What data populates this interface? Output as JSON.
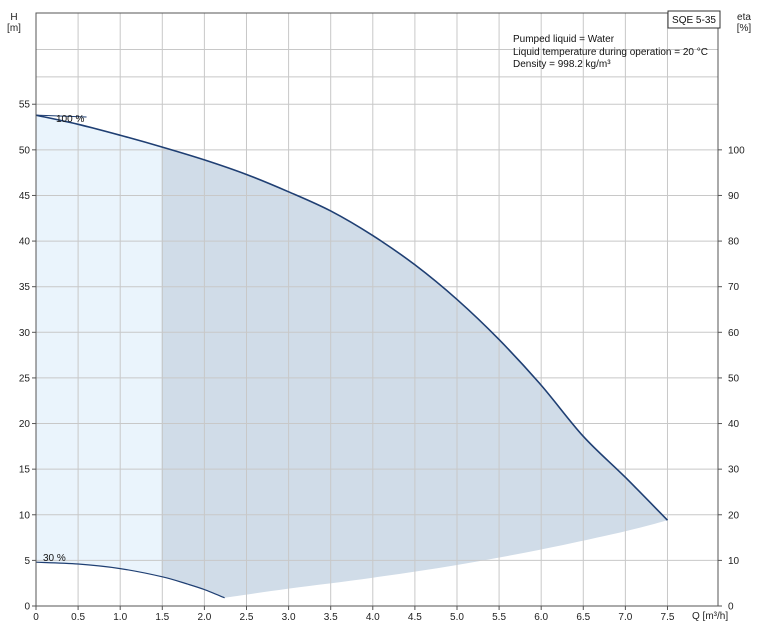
{
  "chart_data": {
    "type": "area",
    "product": "SQE 5-35",
    "notes": [
      "Pumped liquid = Water",
      "Liquid temperature during operation = 20 °C",
      "Density = 998.2 kg/m³"
    ],
    "xlabel": "Q [m³/h]",
    "ylabel": [
      "H",
      "[m]"
    ],
    "y2label": [
      "eta",
      "[%]"
    ],
    "xlim": [
      0,
      8.1
    ],
    "ylim": [
      0,
      65
    ],
    "y2lim": [
      0,
      130
    ],
    "xticks": [
      0,
      0.5,
      1.0,
      1.5,
      2.0,
      2.5,
      3.0,
      3.5,
      4.0,
      4.5,
      5.0,
      5.5,
      6.0,
      6.5,
      7.0,
      7.5
    ],
    "xtick_labels": [
      "0",
      "0.5",
      "1.0",
      "1.5",
      "2.0",
      "2.5",
      "3.0",
      "3.5",
      "4.0",
      "4.5",
      "5.0",
      "5.5",
      "6.0",
      "6.5",
      "7.0",
      "7.5"
    ],
    "yticks": [
      0,
      5,
      10,
      15,
      20,
      25,
      30,
      35,
      40,
      45,
      50,
      55
    ],
    "y2ticks": [
      0,
      10,
      20,
      30,
      40,
      50,
      60,
      70,
      80,
      90,
      100
    ],
    "grid": true,
    "series": [
      {
        "name": "100 %",
        "x": [
          0,
          0.5,
          1.0,
          1.5,
          2.0,
          2.5,
          3.0,
          3.5,
          4.0,
          4.5,
          5.0,
          5.5,
          6.0,
          6.5,
          7.0,
          7.5
        ],
        "y": [
          53.8,
          52.8,
          51.6,
          50.3,
          48.9,
          47.3,
          45.4,
          43.3,
          40.6,
          37.4,
          33.6,
          29.2,
          24.2,
          18.6,
          14.1,
          9.4
        ]
      },
      {
        "name": "30 %",
        "x": [
          0,
          0.5,
          1.0,
          1.5,
          1.8,
          2.0,
          2.24
        ],
        "y": [
          4.8,
          4.6,
          4.1,
          3.2,
          2.4,
          1.8,
          0.9
        ]
      }
    ],
    "lower_bound": {
      "x": [
        2.24,
        3.0,
        4.0,
        5.0,
        6.0,
        7.0,
        7.5
      ],
      "y": [
        0.9,
        1.9,
        3.1,
        4.5,
        6.2,
        8.2,
        9.4
      ]
    },
    "colors": {
      "curve": "#1f3f73",
      "area_light": "#eaf4fc",
      "area_dark": "#d0dce8",
      "grid": "#c8c8c8",
      "axis": "#555555"
    }
  }
}
